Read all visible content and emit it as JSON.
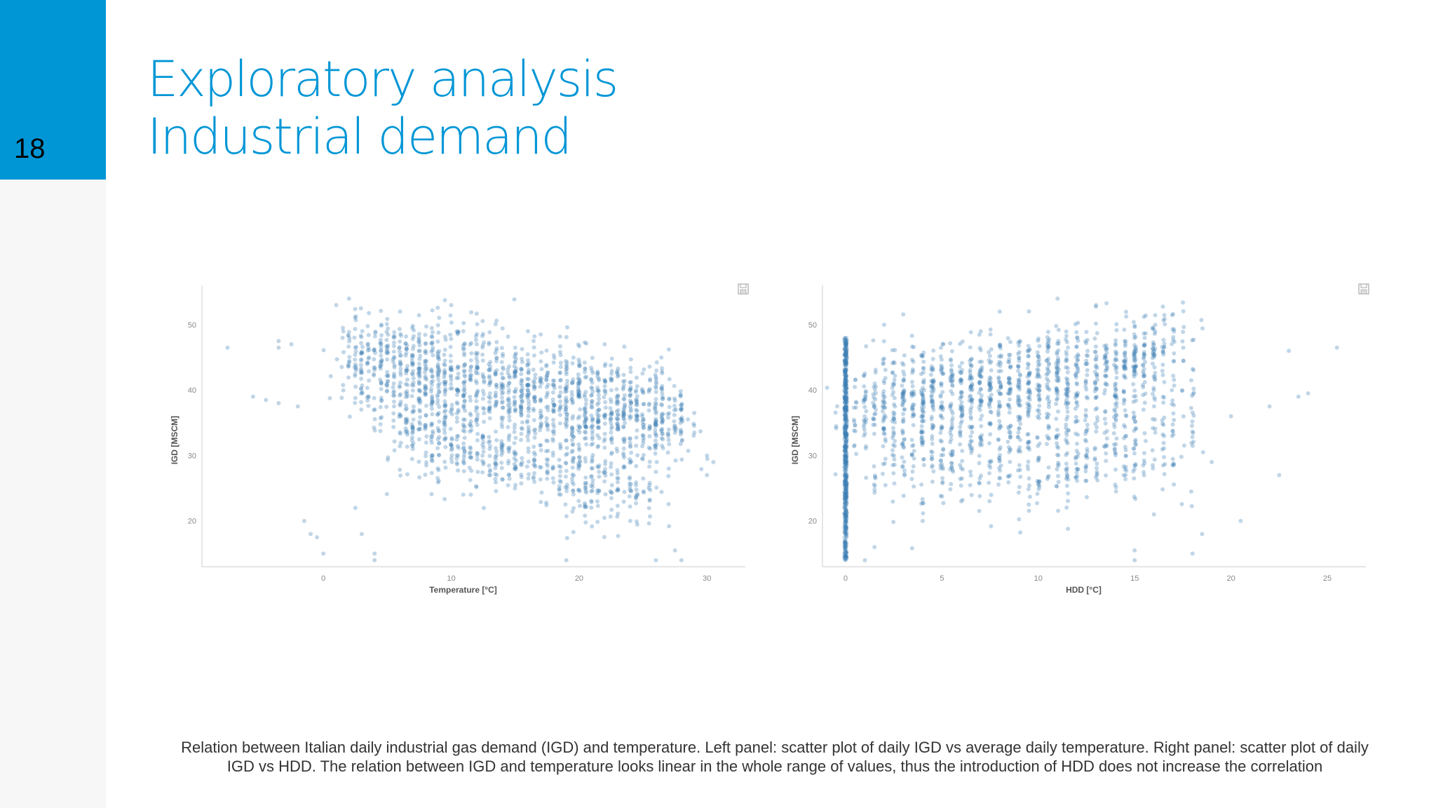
{
  "slide": {
    "page_number": "18",
    "title_line1": "Exploratory analysis",
    "title_line2": "Industrial demand",
    "caption_line1": "Relation between Italian daily industrial gas demand (IGD) and temperature. Left panel: scatter plot of daily IGD vs average daily temperature. Right panel: scatter plot of daily",
    "caption_line2": "IGD vs HDD. The relation between IGD and temperature looks linear in the whole range of values, thus the introduction of HDD does not increase the correlation"
  },
  "colors": {
    "accent": "#0096d6",
    "point": "#3d7fb5",
    "axis": "#cccccc"
  },
  "icons": [
    "save-icon"
  ],
  "chart_data": [
    {
      "type": "scatter",
      "xlabel": "Temperature [°C]",
      "ylabel": "IGD [MSCM]",
      "xlim": [
        -9.5,
        33
      ],
      "ylim": [
        13,
        56
      ],
      "xticks": [
        0,
        10,
        20,
        30
      ],
      "yticks": [
        20,
        30,
        40,
        50
      ],
      "grid": false,
      "trend": {
        "x_start": 2,
        "y_start": 45,
        "x_end": 28,
        "y_end": 35,
        "spread": 4,
        "n": 1500
      },
      "lower_band": {
        "x_start": 5,
        "y_start": 34,
        "x_end": 25,
        "y_end": 24,
        "spread": 3,
        "n": 500
      },
      "scatter_sample": [
        [
          -7.5,
          46.5
        ],
        [
          -5.5,
          39
        ],
        [
          -4.5,
          38.5
        ],
        [
          -3.5,
          38
        ],
        [
          -3.5,
          47.5
        ],
        [
          -3.5,
          46.5
        ],
        [
          -2.5,
          47
        ],
        [
          -2,
          37.5
        ],
        [
          -1.5,
          20
        ],
        [
          -1,
          18
        ],
        [
          -0.5,
          17.5
        ],
        [
          0,
          15
        ],
        [
          1,
          53
        ],
        [
          1.5,
          48
        ],
        [
          2,
          54
        ],
        [
          2.5,
          22
        ],
        [
          3,
          18
        ],
        [
          4,
          14
        ],
        [
          4,
          15
        ],
        [
          6,
          52
        ],
        [
          8,
          46
        ],
        [
          10,
          53
        ],
        [
          13,
          31
        ],
        [
          16,
          49
        ],
        [
          17,
          48.5
        ],
        [
          19,
          14
        ],
        [
          22,
          47
        ],
        [
          24,
          20
        ],
        [
          26,
          14
        ],
        [
          27.5,
          15.5
        ],
        [
          28,
          14
        ],
        [
          29,
          36.5
        ],
        [
          30,
          30
        ],
        [
          30,
          27
        ],
        [
          30.5,
          29
        ]
      ]
    },
    {
      "type": "scatter",
      "xlabel": "HDD [°C]",
      "ylabel": "IGD [MSCM]",
      "xlim": [
        -1.2,
        27
      ],
      "ylim": [
        13,
        56
      ],
      "xticks": [
        0,
        5,
        10,
        15,
        20,
        25
      ],
      "yticks": [
        20,
        30,
        40,
        50
      ],
      "grid": false,
      "hdd_zero_cluster": {
        "x": 0,
        "y_min": 14,
        "y_max": 48,
        "n": 500
      },
      "trend": {
        "x_start": 0.5,
        "y_start": 37,
        "x_end": 17,
        "y_end": 45,
        "spread": 4,
        "n": 1200
      },
      "lower_band": {
        "x_start": 2,
        "y_start": 28,
        "x_end": 18,
        "y_end": 32,
        "spread": 4,
        "n": 500
      },
      "scatter_sample": [
        [
          1,
          14
        ],
        [
          1.5,
          16
        ],
        [
          2,
          50
        ],
        [
          4,
          20
        ],
        [
          6,
          23
        ],
        [
          8,
          52
        ],
        [
          11,
          54
        ],
        [
          13,
          53
        ],
        [
          15,
          14
        ],
        [
          15,
          15.5
        ],
        [
          16,
          21
        ],
        [
          18,
          15
        ],
        [
          18.5,
          18
        ],
        [
          19,
          29
        ],
        [
          20,
          36
        ],
        [
          20.5,
          20
        ],
        [
          22,
          37.5
        ],
        [
          22.5,
          27
        ],
        [
          23,
          46
        ],
        [
          23.5,
          39
        ],
        [
          24,
          39.5
        ],
        [
          25.5,
          46.5
        ]
      ]
    }
  ]
}
